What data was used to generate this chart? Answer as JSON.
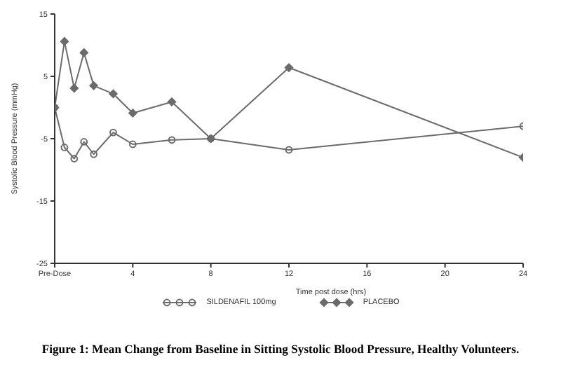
{
  "chart_data": {
    "type": "line",
    "annotations": [
      "Figure 1: Mean Change from Baseline in Sitting Systolic Blood Pressure, Healthy Volunteers."
    ],
    "xlabel": "Time post dose (hrs)",
    "ylabel": "Systolic Blood Pressure (mmHg)",
    "x": [
      0,
      0.5,
      1,
      1.5,
      2,
      3,
      4,
      6,
      8,
      12,
      24
    ],
    "series": [
      {
        "name": "SILDENAFIL 100mg",
        "color": "#6b6b6b",
        "marker": "circle",
        "values": [
          0,
          -6.4,
          -8.2,
          -5.5,
          -7.5,
          -4.0,
          -5.9,
          -5.2,
          -5.0,
          -6.8,
          -3.0
        ]
      },
      {
        "name": "PLACEBO",
        "color": "#6b6b6b",
        "marker": "diamond",
        "values": [
          0,
          10.6,
          3.1,
          8.8,
          3.5,
          2.2,
          -0.9,
          0.9,
          -5.0,
          6.4,
          -8.0
        ]
      }
    ],
    "xlim": [
      0,
      24
    ],
    "xticks": [
      {
        "value": 0,
        "label": "Pre-Dose"
      },
      4,
      8,
      12,
      16,
      20,
      24
    ],
    "ylim": [
      -25,
      15
    ],
    "yticks": [
      -25,
      -15,
      -5,
      5,
      15
    ],
    "grid": false,
    "legend": "bottom",
    "line_style": "solid"
  }
}
